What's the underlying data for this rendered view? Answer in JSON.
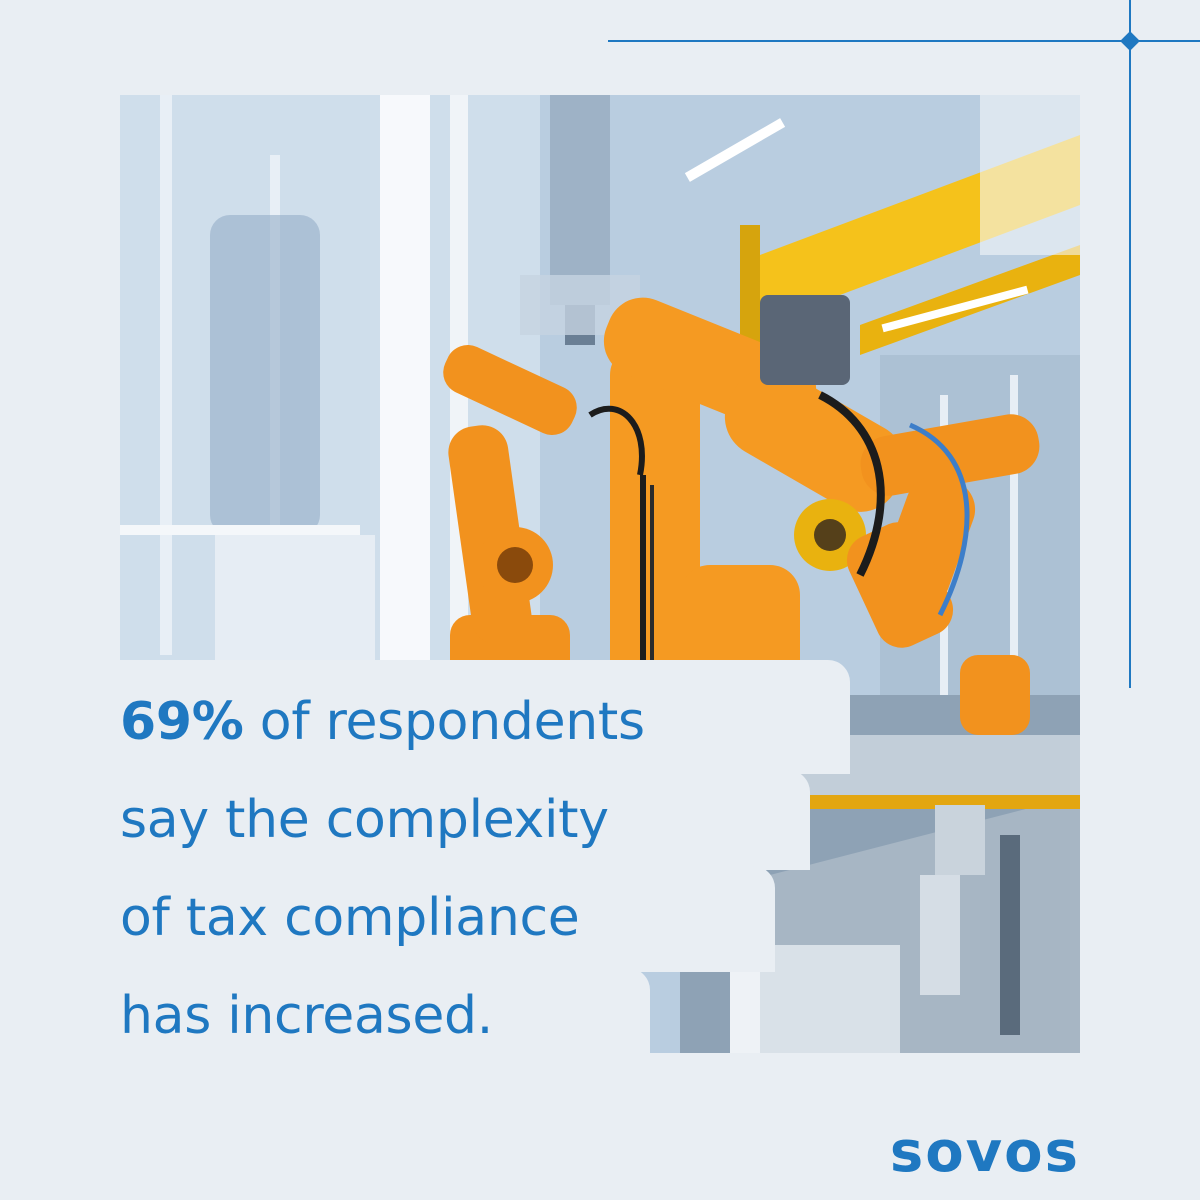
{
  "headline": {
    "stat": "69%",
    "line1_rest": " of respondents",
    "line2": "say the complexity",
    "line3": "of tax compliance",
    "line4": "has increased."
  },
  "brand": {
    "name": "sovos"
  },
  "colors": {
    "accent": "#1f78c1",
    "background": "#e9eef3",
    "robot_orange": "#f2921e",
    "beam_yellow": "#f5c21b"
  },
  "photo": {
    "subject": "factory-robot-arms-icon"
  }
}
